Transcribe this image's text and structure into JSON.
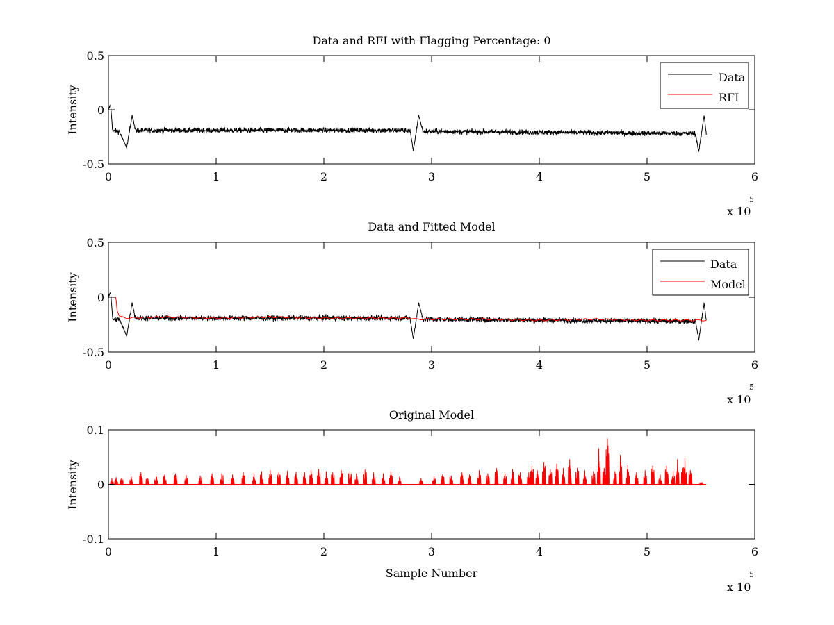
{
  "chart_data": [
    {
      "type": "line",
      "title": "Data and RFI with Flagging Percentage: 0",
      "ylabel": "Intensity",
      "xlabel": "",
      "xlim": [
        0,
        6
      ],
      "ylim": [
        -0.5,
        0.5
      ],
      "x_multiplier": "x 10",
      "x_exponent": "5",
      "x_ticks": [
        "0",
        "1",
        "2",
        "3",
        "4",
        "5",
        "6"
      ],
      "y_ticks": [
        "-0.5",
        "0",
        "0.5"
      ],
      "legend_position": "top-right",
      "series": [
        {
          "name": "Data",
          "color": "#000000",
          "style": "noisy",
          "baseline": -0.19,
          "noise": 0.022,
          "x_end": 5.55,
          "points": [
            [
              0,
              0.0
            ],
            [
              0.02,
              0.05
            ],
            [
              0.04,
              -0.2
            ],
            [
              0.1,
              -0.2
            ],
            [
              0.17,
              -0.35
            ],
            [
              0.22,
              -0.05
            ],
            [
              0.25,
              -0.19
            ],
            [
              2.8,
              -0.19
            ],
            [
              2.83,
              -0.38
            ],
            [
              2.88,
              -0.05
            ],
            [
              2.92,
              -0.2
            ],
            [
              5.45,
              -0.22
            ],
            [
              5.48,
              -0.39
            ],
            [
              5.53,
              -0.05
            ],
            [
              5.55,
              -0.22
            ]
          ]
        },
        {
          "name": "RFI",
          "color": "#ff0000",
          "style": "hidden",
          "points": []
        }
      ]
    },
    {
      "type": "line",
      "title": "Data and Fitted Model",
      "ylabel": "Intensity",
      "xlabel": "",
      "xlim": [
        0,
        6
      ],
      "ylim": [
        -0.5,
        0.5
      ],
      "x_multiplier": "x 10",
      "x_exponent": "5",
      "x_ticks": [
        "0",
        "1",
        "2",
        "3",
        "4",
        "5",
        "6"
      ],
      "y_ticks": [
        "-0.5",
        "0",
        "0.5"
      ],
      "legend_position": "top-right",
      "series": [
        {
          "name": "Data",
          "color": "#000000",
          "style": "noisy",
          "baseline": -0.19,
          "noise": 0.022,
          "x_end": 5.55,
          "points": [
            [
              0,
              0.0
            ],
            [
              0.02,
              0.05
            ],
            [
              0.04,
              -0.2
            ],
            [
              0.1,
              -0.2
            ],
            [
              0.17,
              -0.35
            ],
            [
              0.22,
              -0.05
            ],
            [
              0.25,
              -0.19
            ],
            [
              2.8,
              -0.19
            ],
            [
              2.83,
              -0.38
            ],
            [
              2.88,
              -0.05
            ],
            [
              2.92,
              -0.2
            ],
            [
              5.45,
              -0.22
            ],
            [
              5.48,
              -0.39
            ],
            [
              5.53,
              -0.05
            ],
            [
              5.55,
              -0.22
            ]
          ]
        },
        {
          "name": "Model",
          "color": "#ff0000",
          "style": "line",
          "points": [
            [
              0,
              0.0
            ],
            [
              0.07,
              0.0
            ],
            [
              0.08,
              -0.12
            ],
            [
              0.1,
              -0.17
            ],
            [
              0.15,
              -0.19
            ],
            [
              0.5,
              -0.18
            ],
            [
              1.0,
              -0.19
            ],
            [
              1.5,
              -0.18
            ],
            [
              2.0,
              -0.19
            ],
            [
              2.5,
              -0.19
            ],
            [
              2.8,
              -0.19
            ],
            [
              2.85,
              -0.2
            ],
            [
              3.0,
              -0.2
            ],
            [
              3.5,
              -0.2
            ],
            [
              4.0,
              -0.21
            ],
            [
              4.5,
              -0.2
            ],
            [
              5.0,
              -0.21
            ],
            [
              5.5,
              -0.21
            ],
            [
              5.55,
              -0.21
            ]
          ]
        }
      ]
    },
    {
      "type": "line",
      "title": "Original Model",
      "ylabel": "Intensity",
      "xlabel": "Sample Number",
      "xlim": [
        0,
        6
      ],
      "ylim": [
        -0.1,
        0.1
      ],
      "x_multiplier": "x 10",
      "x_exponent": "5",
      "x_ticks": [
        "0",
        "1",
        "2",
        "3",
        "4",
        "5",
        "6"
      ],
      "y_ticks": [
        "-0.1",
        "0",
        "0.1"
      ],
      "series": [
        {
          "name": "",
          "color": "#ff0000",
          "style": "spikes",
          "x_end": 5.55,
          "spikes": [
            [
              0.03,
              0.011
            ],
            [
              0.07,
              0.013
            ],
            [
              0.12,
              0.012
            ],
            [
              0.21,
              0.014
            ],
            [
              0.3,
              0.022
            ],
            [
              0.36,
              0.012
            ],
            [
              0.44,
              0.016
            ],
            [
              0.52,
              0.018
            ],
            [
              0.62,
              0.02
            ],
            [
              0.72,
              0.017
            ],
            [
              0.85,
              0.016
            ],
            [
              0.96,
              0.02
            ],
            [
              1.05,
              0.02
            ],
            [
              1.15,
              0.018
            ],
            [
              1.25,
              0.022
            ],
            [
              1.35,
              0.021
            ],
            [
              1.42,
              0.024
            ],
            [
              1.5,
              0.026
            ],
            [
              1.58,
              0.022
            ],
            [
              1.66,
              0.025
            ],
            [
              1.74,
              0.023
            ],
            [
              1.82,
              0.022
            ],
            [
              1.88,
              0.026
            ],
            [
              1.95,
              0.028
            ],
            [
              2.02,
              0.024
            ],
            [
              2.08,
              0.022
            ],
            [
              2.16,
              0.026
            ],
            [
              2.24,
              0.024
            ],
            [
              2.3,
              0.02
            ],
            [
              2.38,
              0.027
            ],
            [
              2.46,
              0.022
            ],
            [
              2.55,
              0.02
            ],
            [
              2.62,
              0.024
            ],
            [
              2.7,
              0.014
            ],
            [
              2.9,
              0.012
            ],
            [
              3.02,
              0.015
            ],
            [
              3.1,
              0.018
            ],
            [
              3.18,
              0.016
            ],
            [
              3.28,
              0.022
            ],
            [
              3.35,
              0.018
            ],
            [
              3.44,
              0.026
            ],
            [
              3.52,
              0.02
            ],
            [
              3.6,
              0.03
            ],
            [
              3.68,
              0.02
            ],
            [
              3.75,
              0.028
            ],
            [
              3.82,
              0.022
            ],
            [
              3.9,
              0.022
            ],
            [
              3.93,
              0.034
            ],
            [
              3.98,
              0.026
            ],
            [
              4.04,
              0.04
            ],
            [
              4.1,
              0.028
            ],
            [
              4.16,
              0.038
            ],
            [
              4.22,
              0.03
            ],
            [
              4.28,
              0.046
            ],
            [
              4.35,
              0.03
            ],
            [
              4.42,
              0.026
            ],
            [
              4.5,
              0.024
            ],
            [
              4.55,
              0.066
            ],
            [
              4.6,
              0.03
            ],
            [
              4.63,
              0.084
            ],
            [
              4.7,
              0.024
            ],
            [
              4.75,
              0.054
            ],
            [
              4.82,
              0.035
            ],
            [
              4.9,
              0.022
            ],
            [
              4.98,
              0.026
            ],
            [
              5.05,
              0.034
            ],
            [
              5.12,
              0.018
            ],
            [
              5.18,
              0.034
            ],
            [
              5.24,
              0.026
            ],
            [
              5.28,
              0.046
            ],
            [
              5.33,
              0.03
            ],
            [
              5.35,
              0.048
            ],
            [
              5.4,
              0.026
            ],
            [
              5.5,
              0.004
            ]
          ]
        }
      ]
    }
  ]
}
